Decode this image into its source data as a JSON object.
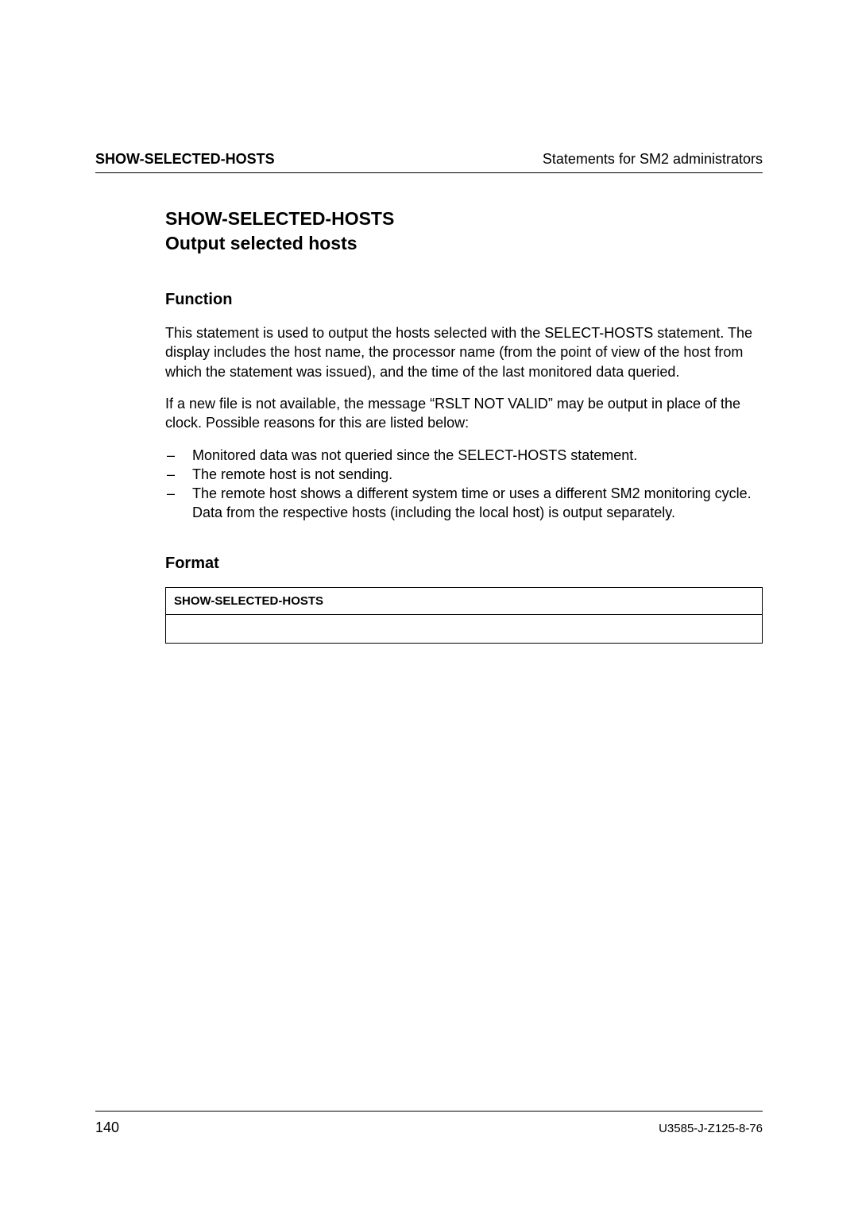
{
  "header": {
    "left": "SHOW-SELECTED-HOSTS",
    "right": "Statements for SM2 administrators"
  },
  "title": {
    "line1": "SHOW-SELECTED-HOSTS",
    "line2": "Output selected hosts"
  },
  "sections": {
    "function": {
      "heading": "Function",
      "para1": "This statement is used to output the hosts selected with the SELECT-HOSTS statement. The display includes the host name, the processor name (from the point of view of the host from which the statement was issued), and the time of the last monitored data queried.",
      "para2": "If a new file is not available, the message “RSLT NOT VALID” may be output in place of the clock. Possible reasons for this are listed below:",
      "bullets": [
        "Monitored data was not queried since the SELECT-HOSTS statement.",
        "The remote host is not sending.",
        "The remote host shows a different system time or uses a different SM2 monitoring cycle. Data from the respective hosts (including the local host) is output separately."
      ]
    },
    "format": {
      "heading": "Format",
      "command": "SHOW-SELECTED-HOSTS"
    }
  },
  "footer": {
    "page_number": "140",
    "doc_id": "U3585-J-Z125-8-76"
  }
}
